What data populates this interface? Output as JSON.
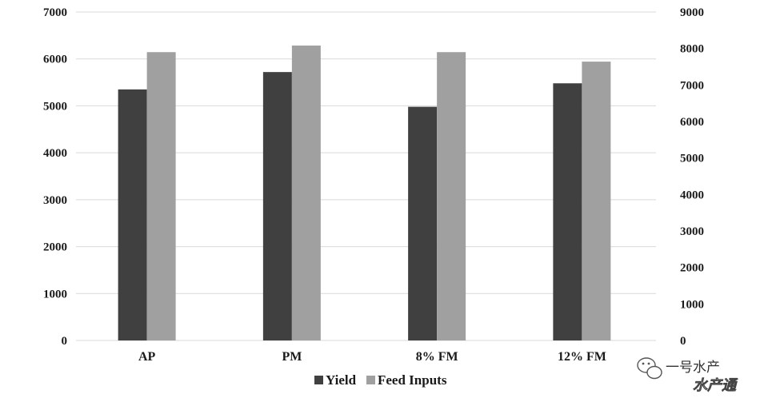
{
  "chart_data": {
    "type": "bar",
    "categories": [
      "AP",
      "PM",
      "8% FM",
      "12% FM"
    ],
    "series": [
      {
        "name": "Yield",
        "axis": "left",
        "color": "#404040",
        "values": [
          5350,
          5720,
          4980,
          5480
        ]
      },
      {
        "name": "Feed Inputs",
        "axis": "right",
        "color": "#a0a0a0",
        "values": [
          7900,
          8080,
          7900,
          7640
        ]
      }
    ],
    "y_left": {
      "min": 0,
      "max": 7000,
      "ticks": [
        0,
        1000,
        2000,
        3000,
        4000,
        5000,
        6000,
        7000
      ]
    },
    "y_right": {
      "min": 0,
      "max": 9000,
      "ticks": [
        0,
        1000,
        2000,
        3000,
        4000,
        5000,
        6000,
        7000,
        8000,
        9000
      ]
    },
    "grid": true,
    "legend": "bottom-center"
  },
  "watermark": {
    "line1": "一号水产",
    "line2": "水产通"
  }
}
